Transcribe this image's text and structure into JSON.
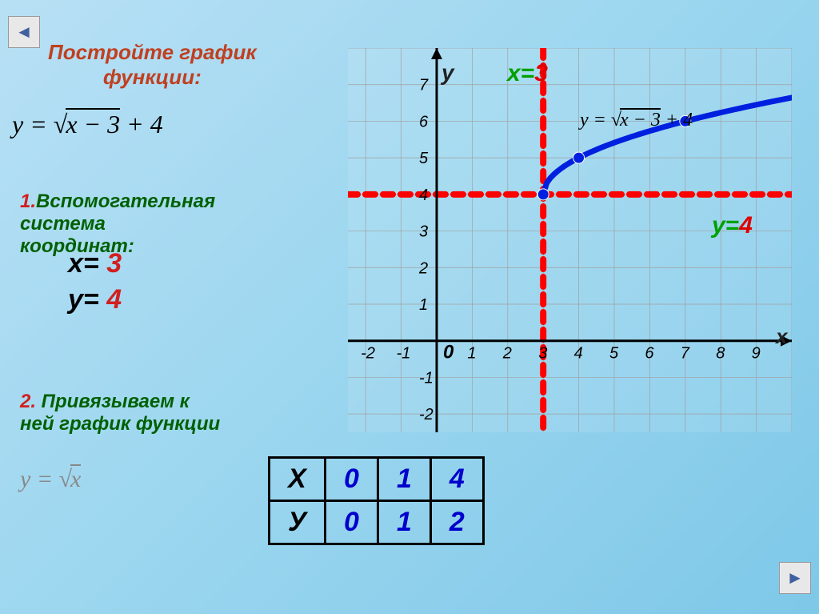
{
  "nav": {
    "left_icon": "◄",
    "right_icon": "►"
  },
  "title": "Постройте график\nфункции:",
  "formula_main": {
    "lhs": "y = ",
    "rad": "√",
    "inside": "x − 3",
    "tail": " + 4"
  },
  "step1": {
    "num": "1.",
    "text": "Вспомогательная\nсистема\nкоординат:"
  },
  "coords": {
    "x_var": "x= ",
    "x_val": "3",
    "y_var": "y= ",
    "y_val": "4"
  },
  "step2": {
    "num": "2.",
    "text": " Привязываем к\nней график функции"
  },
  "formula_small": {
    "lhs": "y = ",
    "rad": "√",
    "inside": "x"
  },
  "chart": {
    "type": "line",
    "x_ticks": [
      -2,
      -1,
      0,
      1,
      2,
      3,
      4,
      5,
      6,
      7,
      8,
      9
    ],
    "y_ticks": [
      -2,
      -1,
      1,
      2,
      3,
      4,
      5,
      6,
      7
    ],
    "origin_label": "0",
    "xlim": [
      -2.5,
      10
    ],
    "ylim": [
      -2.5,
      8
    ],
    "grid_color": "#a0a0a0",
    "axis_color": "#000000",
    "curve_color": "#0020e0",
    "curve_width": 7,
    "dashed_color": "#ff0000",
    "dashed_width": 8,
    "points": [
      {
        "x": 3,
        "y": 4
      },
      {
        "x": 4,
        "y": 5
      },
      {
        "x": 7,
        "y": 6
      }
    ],
    "vline_x": 3,
    "hline_y": 4,
    "y_label": "y",
    "x_label": "x",
    "x3_label_g": "x=",
    "x3_label_r": "3",
    "y4_label_g": "y=",
    "y4_label_r": "4",
    "formula_chart": {
      "lhs": "y = ",
      "rad": "√",
      "inside": "x − 3",
      "tail": " + 4"
    },
    "tick_fontsize": 20,
    "tick_color": "#000000"
  },
  "table": {
    "headers": [
      "Х",
      "У"
    ],
    "x_values": [
      "0",
      "1",
      "4"
    ],
    "y_values": [
      "0",
      "1",
      "2"
    ],
    "header_color": "#000000",
    "value_color": "#0000cc"
  }
}
